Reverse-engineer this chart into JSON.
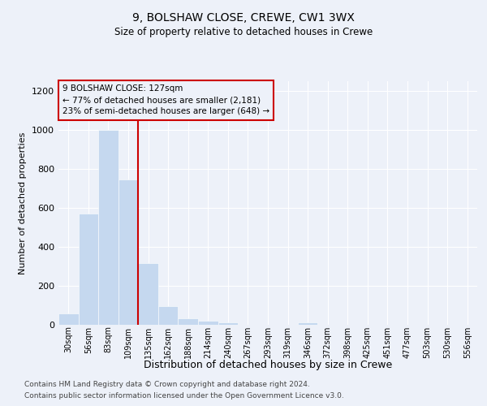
{
  "title1": "9, BOLSHAW CLOSE, CREWE, CW1 3WX",
  "title2": "Size of property relative to detached houses in Crewe",
  "xlabel": "Distribution of detached houses by size in Crewe",
  "ylabel": "Number of detached properties",
  "bar_color": "#c5d8ef",
  "bar_edgecolor": "#c5d8ef",
  "vline_color": "#cc0000",
  "annotation_text": "9 BOLSHAW CLOSE: 127sqm\n← 77% of detached houses are smaller (2,181)\n23% of semi-detached houses are larger (648) →",
  "categories": [
    "30sqm",
    "56sqm",
    "83sqm",
    "109sqm",
    "135sqm",
    "162sqm",
    "188sqm",
    "214sqm",
    "240sqm",
    "267sqm",
    "293sqm",
    "319sqm",
    "346sqm",
    "372sqm",
    "398sqm",
    "425sqm",
    "451sqm",
    "477sqm",
    "503sqm",
    "530sqm",
    "556sqm"
  ],
  "values": [
    60,
    570,
    1000,
    745,
    315,
    95,
    35,
    22,
    12,
    0,
    0,
    0,
    12,
    0,
    0,
    0,
    0,
    0,
    0,
    0,
    0
  ],
  "ylim": [
    0,
    1250
  ],
  "yticks": [
    0,
    200,
    400,
    600,
    800,
    1000,
    1200
  ],
  "footer1": "Contains HM Land Registry data © Crown copyright and database right 2024.",
  "footer2": "Contains public sector information licensed under the Open Government Licence v3.0.",
  "background_color": "#edf1f9",
  "grid_color": "#ffffff",
  "vline_index": 3.5
}
